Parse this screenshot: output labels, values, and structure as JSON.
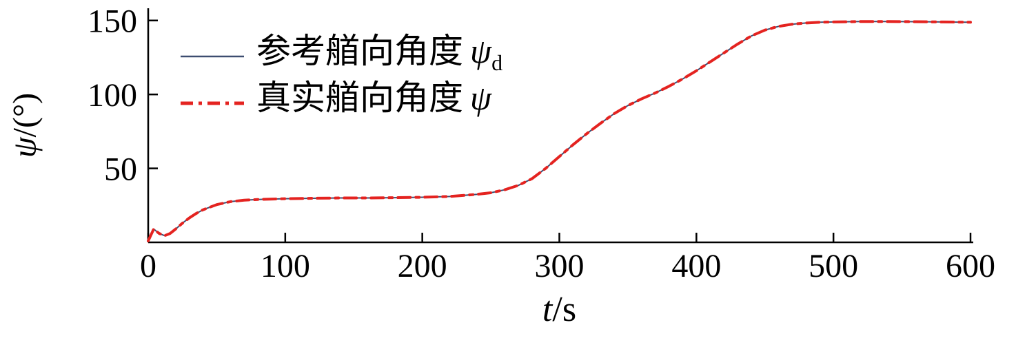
{
  "chart_data": {
    "type": "line",
    "title": "",
    "xlabel": "t/s",
    "ylabel": "ψ/(°)",
    "xlabel_parts": {
      "symbol": "t",
      "rest": "/s"
    },
    "ylabel_parts": {
      "symbol": "ψ",
      "rest": "/(°)"
    },
    "xlim": [
      0,
      600
    ],
    "ylim": [
      0,
      155
    ],
    "xticks": [
      0,
      100,
      200,
      300,
      400,
      500,
      600
    ],
    "yticks": [
      50,
      100,
      150
    ],
    "grid": false,
    "legend_position": "top-left",
    "x": [
      0,
      4,
      8,
      12,
      16,
      20,
      25,
      30,
      35,
      40,
      50,
      60,
      70,
      80,
      100,
      120,
      140,
      160,
      180,
      200,
      220,
      240,
      250,
      260,
      270,
      280,
      290,
      300,
      310,
      320,
      330,
      340,
      350,
      360,
      370,
      380,
      390,
      400,
      410,
      420,
      430,
      440,
      450,
      460,
      470,
      480,
      490,
      500,
      520,
      540,
      560,
      580,
      600
    ],
    "series": [
      {
        "name": "参考艏向角度 ψd",
        "color": "#3d4d70",
        "style": "solid",
        "width": 2,
        "values": [
          1,
          9,
          6,
          4.5,
          6,
          9,
          13,
          16.5,
          19.5,
          22,
          25.5,
          27.5,
          28.5,
          29,
          29.5,
          29.8,
          30,
          30,
          30.2,
          30.5,
          31,
          32.5,
          33.5,
          35.5,
          38.5,
          43,
          50,
          58,
          66,
          73.5,
          80.5,
          87,
          92.5,
          97,
          101,
          105.5,
          110.5,
          116,
          122,
          128,
          134,
          139.5,
          143.5,
          146,
          147.5,
          148.3,
          148.8,
          149,
          149.3,
          149.3,
          149.2,
          149,
          148.8
        ]
      },
      {
        "name": "真实艏向角度 ψ",
        "color": "#e42320",
        "style": "dash-dot",
        "width": 4,
        "values": [
          1,
          9,
          6,
          4.5,
          6,
          9,
          13,
          16.5,
          19.5,
          22,
          25.5,
          27.5,
          28.5,
          29,
          29.5,
          29.8,
          30,
          30,
          30.2,
          30.5,
          31,
          32.5,
          33.5,
          35.5,
          38.5,
          43,
          50,
          58,
          66,
          73.5,
          80.5,
          87,
          92.5,
          97,
          101,
          105.5,
          110.5,
          116,
          122,
          128,
          134,
          139.5,
          143.5,
          146,
          147.5,
          148.3,
          148.8,
          149,
          149.3,
          149.3,
          149.2,
          149,
          148.8
        ]
      }
    ]
  },
  "legend": {
    "items": [
      {
        "label": "参考艏向角度",
        "symbol": "ψ",
        "subscript": "d"
      },
      {
        "label": "真实艏向角度",
        "symbol": "ψ",
        "subscript": ""
      }
    ]
  }
}
